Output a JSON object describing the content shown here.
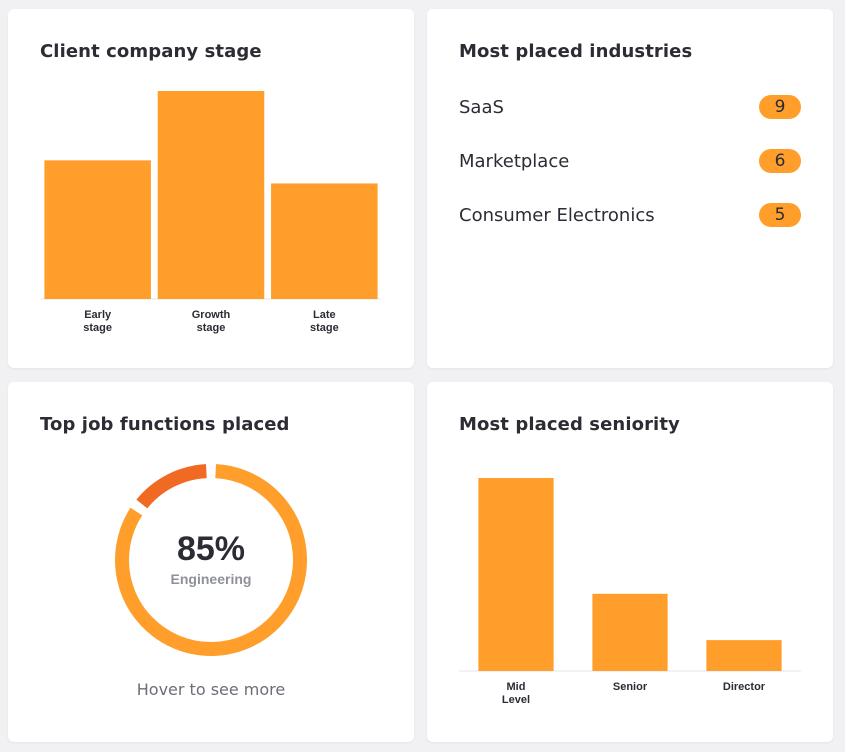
{
  "colors": {
    "bar": "#ff9e2a",
    "accent": "#f06a23",
    "badge": "#ff9e2a",
    "muted": "#8e919b"
  },
  "stage_card": {
    "title": "Client company stage",
    "chart_data": {
      "type": "bar",
      "categories": [
        [
          "Early",
          "stage"
        ],
        [
          "Growth",
          "stage"
        ],
        [
          "Late",
          "stage"
        ]
      ],
      "values": [
        6,
        9,
        5
      ],
      "ylim": [
        0,
        9
      ]
    }
  },
  "industries_card": {
    "title": "Most placed industries",
    "items": [
      {
        "label": "SaaS",
        "count": "9"
      },
      {
        "label": "Marketplace",
        "count": "6"
      },
      {
        "label": "Consumer Electronics",
        "count": "5"
      }
    ]
  },
  "functions_card": {
    "title": "Top job functions placed",
    "percent_label": "85%",
    "function_label": "Engineering",
    "hover_note": "Hover to see more",
    "segments": [
      {
        "name": "Engineering",
        "fraction": 0.85
      },
      {
        "name": "Other",
        "fraction": 0.15
      }
    ]
  },
  "seniority_card": {
    "title": "Most placed seniority",
    "chart_data": {
      "type": "bar",
      "categories": [
        [
          "Mid",
          "Level"
        ],
        [
          "Senior"
        ],
        [
          "Director"
        ]
      ],
      "values": [
        10,
        4,
        1.6
      ],
      "ylim": [
        0,
        10
      ]
    }
  }
}
